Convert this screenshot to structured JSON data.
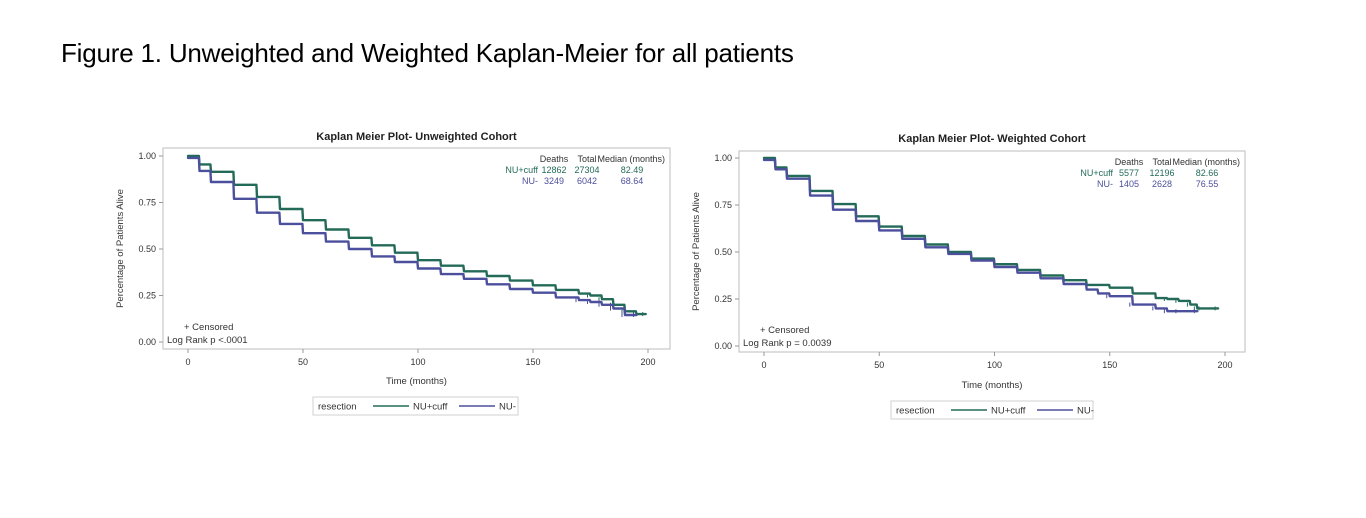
{
  "figure": {
    "title": "Figure 1. Unweighted and Weighted Kaplan-Meier for all patients"
  },
  "chart_data": [
    {
      "type": "line",
      "title": "Kaplan Meier Plot- Unweighted Cohort",
      "xlabel": "Time (months)",
      "ylabel": "Percentage of Patients Alive",
      "xlim": [
        0,
        200
      ],
      "ylim": [
        0,
        1
      ],
      "xticks": [
        "0",
        "50",
        "100",
        "150",
        "200"
      ],
      "yticks": [
        "0.00",
        "0.25",
        "0.50",
        "0.75",
        "1.00"
      ],
      "grid": false,
      "series": [
        {
          "name": "NU+cuff",
          "color": "#236b58",
          "x": [
            0,
            5,
            10,
            20,
            30,
            40,
            50,
            60,
            70,
            80,
            90,
            100,
            110,
            120,
            130,
            140,
            150,
            160,
            170,
            175,
            180,
            185,
            190,
            195,
            199
          ],
          "y": [
            1.0,
            0.955,
            0.915,
            0.845,
            0.78,
            0.715,
            0.655,
            0.605,
            0.56,
            0.52,
            0.48,
            0.44,
            0.41,
            0.38,
            0.355,
            0.33,
            0.305,
            0.28,
            0.26,
            0.25,
            0.23,
            0.2,
            0.165,
            0.15,
            0.15
          ]
        },
        {
          "name": "NU-",
          "color": "#4b4f9c",
          "x": [
            0,
            5,
            10,
            20,
            30,
            40,
            50,
            60,
            70,
            80,
            90,
            100,
            110,
            120,
            130,
            140,
            150,
            160,
            170,
            175,
            180,
            185,
            190,
            195
          ],
          "y": [
            0.99,
            0.92,
            0.86,
            0.77,
            0.695,
            0.635,
            0.585,
            0.54,
            0.5,
            0.46,
            0.43,
            0.395,
            0.365,
            0.34,
            0.31,
            0.285,
            0.265,
            0.24,
            0.225,
            0.215,
            0.2,
            0.18,
            0.145,
            0.145
          ]
        }
      ],
      "legend": {
        "title": "resection",
        "placement": "bottom",
        "entries": [
          "NU+cuff",
          "NU-"
        ]
      },
      "inset_table": {
        "headers": [
          "",
          "Deaths",
          "Total",
          "Median (months)"
        ],
        "rows": [
          [
            "NU+cuff",
            "12862",
            "27304",
            "82.49"
          ],
          [
            "NU-",
            "3249",
            "6042",
            "68.64"
          ]
        ]
      },
      "annotations": [
        "+ Censored",
        "Log Rank p <.0001"
      ]
    },
    {
      "type": "line",
      "title": "Kaplan Meier Plot- Weighted Cohort",
      "xlabel": "Time (months)",
      "ylabel": "Percentage of Patients Alive",
      "xlim": [
        0,
        200
      ],
      "ylim": [
        0,
        1
      ],
      "xticks": [
        "0",
        "50",
        "100",
        "150",
        "200"
      ],
      "yticks": [
        "0.00",
        "0.25",
        "0.50",
        "0.75",
        "1.00"
      ],
      "grid": false,
      "series": [
        {
          "name": "NU+cuff",
          "color": "#236b58",
          "x": [
            0,
            5,
            10,
            20,
            30,
            40,
            50,
            60,
            70,
            80,
            90,
            100,
            110,
            120,
            130,
            140,
            150,
            160,
            170,
            175,
            180,
            185,
            188,
            190,
            197
          ],
          "y": [
            1.0,
            0.95,
            0.905,
            0.825,
            0.755,
            0.69,
            0.635,
            0.585,
            0.54,
            0.5,
            0.465,
            0.435,
            0.405,
            0.375,
            0.35,
            0.325,
            0.31,
            0.28,
            0.255,
            0.25,
            0.24,
            0.22,
            0.2,
            0.2,
            0.2
          ]
        },
        {
          "name": "NU-",
          "color": "#4b4f9c",
          "x": [
            0,
            5,
            10,
            20,
            30,
            40,
            50,
            60,
            70,
            80,
            90,
            100,
            110,
            120,
            130,
            140,
            145,
            150,
            160,
            170,
            175,
            180,
            188
          ],
          "y": [
            0.99,
            0.94,
            0.89,
            0.8,
            0.725,
            0.665,
            0.615,
            0.57,
            0.525,
            0.49,
            0.455,
            0.42,
            0.39,
            0.36,
            0.33,
            0.3,
            0.28,
            0.265,
            0.22,
            0.2,
            0.185,
            0.185,
            0.185
          ]
        }
      ],
      "legend": {
        "title": "resection",
        "placement": "bottom",
        "entries": [
          "NU+cuff",
          "NU-"
        ]
      },
      "inset_table": {
        "headers": [
          "",
          "Deaths",
          "Total",
          "Median (months)"
        ],
        "rows": [
          [
            "NU+cuff",
            "5577",
            "12196",
            "82.66"
          ],
          [
            "NU-",
            "1405",
            "2628",
            "76.55"
          ]
        ]
      },
      "annotations": [
        "+ Censored",
        "Log Rank p = 0.0039"
      ]
    }
  ]
}
